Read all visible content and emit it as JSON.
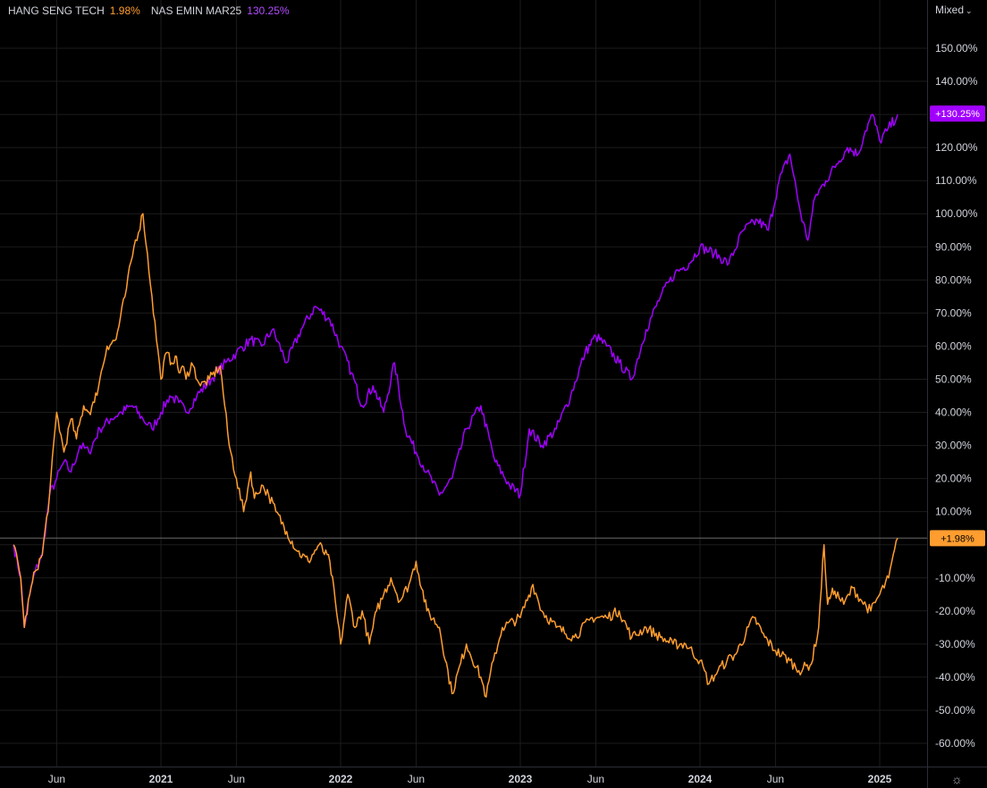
{
  "legend": {
    "series1_name": "HANG SENG TECH",
    "series1_value": "1.98%",
    "series2_name": "NAS EMIN MAR25",
    "series2_value": "130.25%"
  },
  "scale_mode": "Mixed",
  "colors": {
    "series1": "#ff9d2f",
    "series2": "#a100ff",
    "background": "#000000",
    "grid": "#1c1c1c",
    "axis_text": "#d1d4dc"
  },
  "chart_data": {
    "type": "line",
    "title": "",
    "xlabel": "",
    "ylabel": "",
    "ylim": [
      -66,
      158
    ],
    "xlim": [
      2020.18,
      2025.25
    ],
    "x_ticks": [
      {
        "label": "Jun",
        "x": 2020.42
      },
      {
        "label": "2021",
        "x": 2021.0
      },
      {
        "label": "Jun",
        "x": 2021.42
      },
      {
        "label": "2022",
        "x": 2022.0
      },
      {
        "label": "Jun",
        "x": 2022.42
      },
      {
        "label": "2023",
        "x": 2023.0
      },
      {
        "label": "Jun",
        "x": 2023.42
      },
      {
        "label": "2024",
        "x": 2024.0
      },
      {
        "label": "Jun",
        "x": 2024.42
      },
      {
        "label": "2025",
        "x": 2025.0
      }
    ],
    "y_ticks": [
      {
        "label": "150.00%",
        "v": 150
      },
      {
        "label": "140.00%",
        "v": 140
      },
      {
        "label": "130.00%",
        "v": 130
      },
      {
        "label": "120.00%",
        "v": 120
      },
      {
        "label": "110.00%",
        "v": 110
      },
      {
        "label": "100.00%",
        "v": 100
      },
      {
        "label": "90.00%",
        "v": 90
      },
      {
        "label": "80.00%",
        "v": 80
      },
      {
        "label": "70.00%",
        "v": 70
      },
      {
        "label": "60.00%",
        "v": 60
      },
      {
        "label": "50.00%",
        "v": 50
      },
      {
        "label": "40.00%",
        "v": 40
      },
      {
        "label": "30.00%",
        "v": 30
      },
      {
        "label": "20.00%",
        "v": 20
      },
      {
        "label": "10.00%",
        "v": 10
      },
      {
        "label": "-10.00%",
        "v": -10
      },
      {
        "label": "-20.00%",
        "v": -20
      },
      {
        "label": "-30.00%",
        "v": -30
      },
      {
        "label": "-40.00%",
        "v": -40
      },
      {
        "label": "-50.00%",
        "v": -50
      },
      {
        "label": "-60.00%",
        "v": -60
      }
    ],
    "price_labels": [
      {
        "series": 1,
        "text": "+130.25%",
        "v": 130.25
      },
      {
        "series": 0,
        "text": "+1.98%",
        "v": 1.98
      }
    ],
    "series": [
      {
        "name": "HANG SENG TECH",
        "x": [
          2020.18,
          2020.22,
          2020.24,
          2020.27,
          2020.3,
          2020.34,
          2020.38,
          2020.42,
          2020.46,
          2020.5,
          2020.53,
          2020.57,
          2020.6,
          2020.63,
          2020.66,
          2020.7,
          2020.75,
          2020.8,
          2020.85,
          2020.9,
          2020.95,
          2021.0,
          2021.03,
          2021.06,
          2021.08,
          2021.1,
          2021.12,
          2021.14,
          2021.17,
          2021.22,
          2021.27,
          2021.33,
          2021.38,
          2021.42,
          2021.46,
          2021.5,
          2021.52,
          2021.56,
          2021.6,
          2021.64,
          2021.7,
          2021.76,
          2021.82,
          2021.88,
          2021.94,
          2022.0,
          2022.04,
          2022.08,
          2022.12,
          2022.16,
          2022.18,
          2022.2,
          2022.24,
          2022.28,
          2022.33,
          2022.38,
          2022.42,
          2022.48,
          2022.55,
          2022.62,
          2022.7,
          2022.78,
          2022.81,
          2022.85,
          2022.9,
          2023.0,
          2023.07,
          2023.12,
          2023.2,
          2023.3,
          2023.4,
          2023.48,
          2023.55,
          2023.62,
          2023.7,
          2023.78,
          2023.85,
          2023.92,
          2024.0,
          2024.05,
          2024.1,
          2024.15,
          2024.2,
          2024.3,
          2024.36,
          2024.42,
          2024.5,
          2024.55,
          2024.62,
          2024.66,
          2024.69,
          2024.71,
          2024.73,
          2024.75,
          2024.8,
          2024.85,
          2024.9,
          2024.95,
          2025.0,
          2025.05,
          2025.1
        ],
        "values": [
          0,
          -10,
          -25,
          -15,
          -8,
          -3,
          15,
          40,
          28,
          38,
          32,
          42,
          40,
          43,
          50,
          60,
          62,
          75,
          90,
          100,
          75,
          50,
          58,
          55,
          57,
          52,
          54,
          50,
          55,
          48,
          50,
          54,
          30,
          20,
          10,
          22,
          14,
          18,
          15,
          10,
          4,
          -2,
          -5,
          0,
          -5,
          -30,
          -15,
          -25,
          -20,
          -30,
          -25,
          -20,
          -15,
          -10,
          -17,
          -12,
          -5,
          -20,
          -25,
          -45,
          -30,
          -40,
          -46,
          -35,
          -25,
          -22,
          -12,
          -20,
          -25,
          -28,
          -22,
          -22,
          -20,
          -28,
          -25,
          -28,
          -30,
          -30,
          -35,
          -42,
          -38,
          -35,
          -33,
          -22,
          -28,
          -32,
          -35,
          -38,
          -36,
          -25,
          0,
          -18,
          -15,
          -14,
          -18,
          -13,
          -17,
          -20,
          -15,
          -10,
          2
        ]
      },
      {
        "name": "NAS EMIN MAR25",
        "x": [
          2020.18,
          2020.22,
          2020.24,
          2020.27,
          2020.3,
          2020.34,
          2020.38,
          2020.42,
          2020.46,
          2020.5,
          2020.55,
          2020.6,
          2020.66,
          2020.72,
          2020.78,
          2020.84,
          2020.9,
          2020.95,
          2021.0,
          2021.05,
          2021.1,
          2021.14,
          2021.2,
          2021.28,
          2021.36,
          2021.42,
          2021.5,
          2021.56,
          2021.62,
          2021.7,
          2021.78,
          2021.86,
          2021.94,
          2022.0,
          2022.06,
          2022.12,
          2022.18,
          2022.24,
          2022.3,
          2022.36,
          2022.42,
          2022.48,
          2022.55,
          2022.62,
          2022.7,
          2022.78,
          2022.86,
          2022.94,
          2023.0,
          2023.05,
          2023.12,
          2023.2,
          2023.28,
          2023.36,
          2023.42,
          2023.48,
          2023.55,
          2023.62,
          2023.7,
          2023.78,
          2023.86,
          2023.94,
          2024.0,
          2024.08,
          2024.16,
          2024.24,
          2024.32,
          2024.38,
          2024.44,
          2024.5,
          2024.56,
          2024.6,
          2024.64,
          2024.7,
          2024.76,
          2024.82,
          2024.88,
          2024.92,
          2024.96,
          2025.0,
          2025.04,
          2025.1
        ],
        "values": [
          0,
          -10,
          -25,
          -15,
          -8,
          -3,
          15,
          20,
          25,
          22,
          30,
          28,
          35,
          38,
          40,
          42,
          38,
          35,
          40,
          45,
          43,
          40,
          45,
          50,
          55,
          58,
          62,
          60,
          65,
          55,
          65,
          72,
          68,
          60,
          52,
          42,
          48,
          40,
          55,
          35,
          28,
          22,
          15,
          20,
          35,
          42,
          25,
          18,
          15,
          35,
          30,
          35,
          45,
          58,
          63,
          60,
          55,
          50,
          65,
          75,
          82,
          85,
          90,
          88,
          85,
          95,
          98,
          95,
          110,
          118,
          100,
          92,
          105,
          110,
          115,
          120,
          118,
          125,
          130,
          122,
          125,
          130
        ]
      }
    ]
  }
}
